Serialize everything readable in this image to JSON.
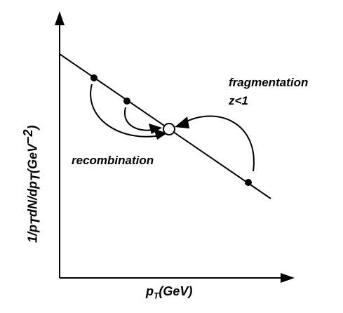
{
  "labels": {
    "fragmentation": "fragmentation",
    "z_condition": "z<1",
    "recombination": "recombination",
    "x_axis_p": "p",
    "x_axis_sub": "T",
    "x_axis_unit": "(GeV)",
    "y_axis_a": "1/p",
    "y_axis_sub1": "T",
    "y_axis_b": "dN/dp",
    "y_axis_sub2": "T",
    "y_axis_c": "(GeV",
    "y_axis_sup": "−2",
    "y_axis_d": ")"
  },
  "colors": {
    "ink": "#000000",
    "background": "#ffffff"
  }
}
